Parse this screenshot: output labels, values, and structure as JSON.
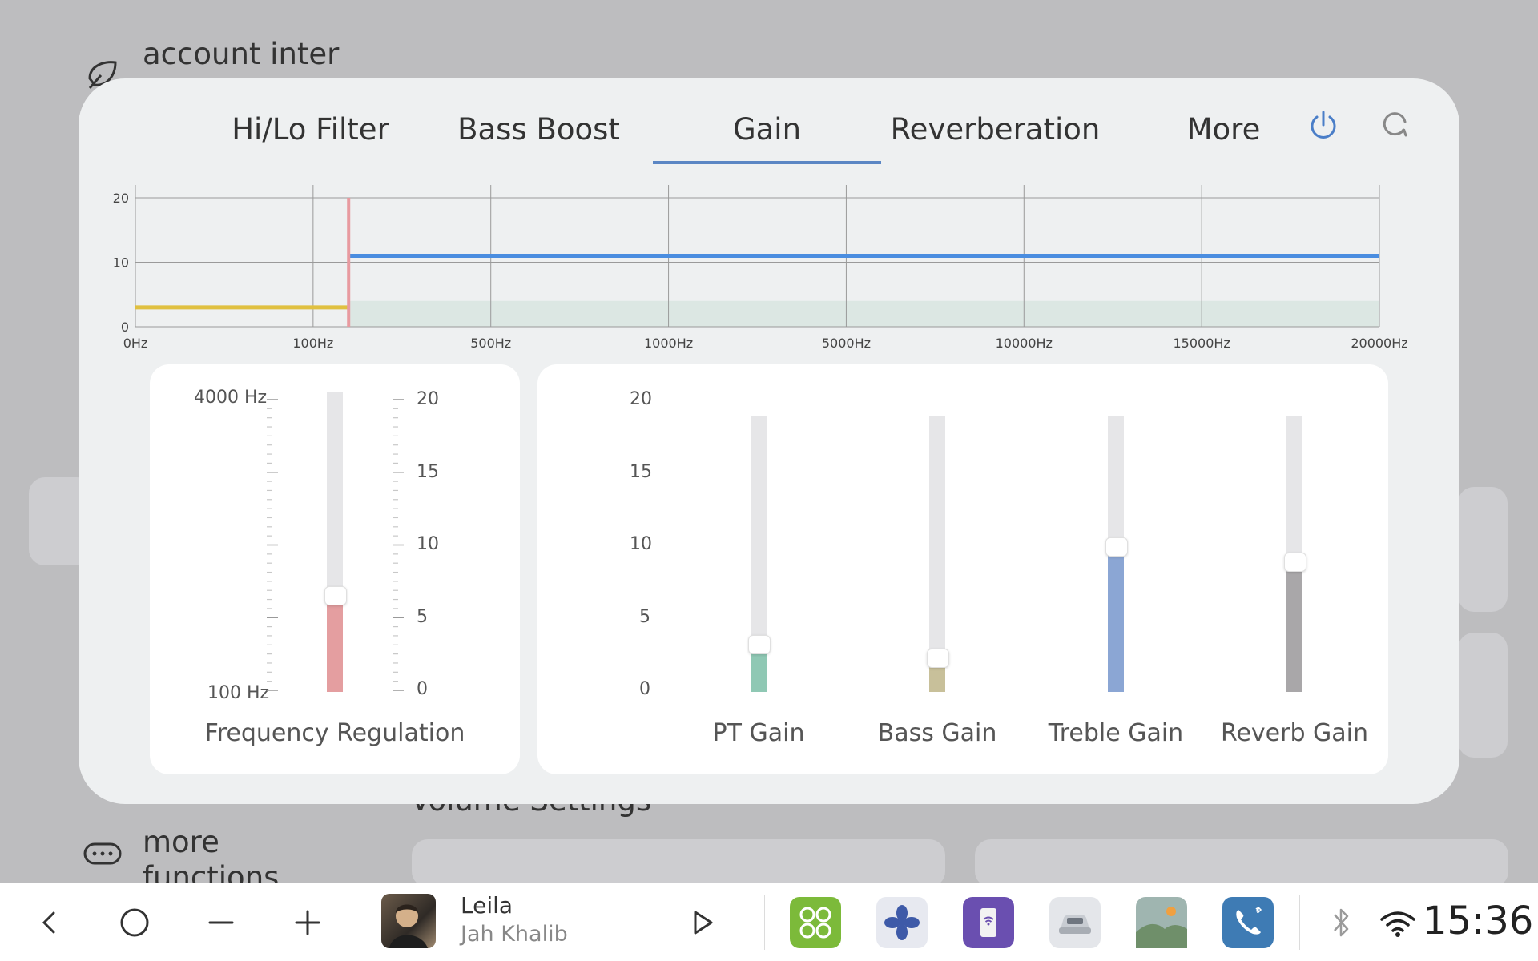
{
  "background": {
    "account_label": "account inter",
    "more_label_1": "more",
    "more_label_2": "functions",
    "volume_heading": "Volume Settings"
  },
  "tabs": [
    {
      "label": "Hi/Lo Filter",
      "active": false
    },
    {
      "label": "Bass Boost",
      "active": false
    },
    {
      "label": "Gain",
      "active": true
    },
    {
      "label": "Reverberation",
      "active": false
    },
    {
      "label": "More",
      "active": false
    }
  ],
  "chart_data": {
    "type": "line",
    "x_ticks": [
      "0Hz",
      "100Hz",
      "500Hz",
      "1000Hz",
      "5000Hz",
      "10000Hz",
      "15000Hz",
      "20000Hz"
    ],
    "y_ticks": [
      "0",
      "10",
      "20"
    ],
    "ylim": [
      0,
      20
    ],
    "grid": true,
    "series": [
      {
        "color": "#e0c040",
        "from_tick": 0,
        "to_tick": 1.2,
        "value": 3
      },
      {
        "color": "#4a8de0",
        "from_tick": 1.2,
        "to_tick": 7,
        "value": 11
      }
    ],
    "marker": {
      "color": "#e89aa0",
      "at_tick": 1.2
    },
    "band": {
      "color": "#dce7e3",
      "value": 4
    }
  },
  "frequency_panel": {
    "caption": "Frequency Regulation",
    "freq_max": "4000 Hz",
    "freq_min": "100 Hz",
    "scale": [
      "20",
      "15",
      "10",
      "5",
      "0"
    ],
    "value": 6.3,
    "max": 20,
    "fill_color": "#e49ea0"
  },
  "gain_panel": {
    "scale": [
      "20",
      "15",
      "10",
      "5",
      "0"
    ],
    "sliders": [
      {
        "label": "PT Gain",
        "value": 3.3,
        "color": "#8fc8b4"
      },
      {
        "label": "Bass Gain",
        "value": 2.3,
        "color": "#c8c09a"
      },
      {
        "label": "Treble Gain",
        "value": 10.4,
        "color": "#8ba6d4"
      },
      {
        "label": "Reverb Gain",
        "value": 9.3,
        "color": "#a9a7a9"
      }
    ],
    "max": 20
  },
  "taskbar": {
    "track_title": "Leila",
    "track_artist": "Jah Khalib",
    "time": "15:36"
  },
  "icons": {
    "back": "chevron-left-icon",
    "home": "circle-home-icon",
    "minus": "minus-icon",
    "plus": "plus-icon",
    "play": "play-icon",
    "power": "power-icon",
    "reset": "reset-icon"
  }
}
